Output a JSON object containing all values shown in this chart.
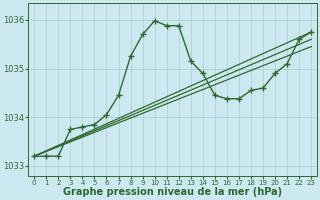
{
  "xlabel": "Graphe pression niveau de la mer (hPa)",
  "background_color": "#cce8f0",
  "grid_color": "#aacccc",
  "line_color": "#2d6a2d",
  "xlim": [
    -0.5,
    23.5
  ],
  "ylim": [
    1032.8,
    1036.35
  ],
  "yticks": [
    1033,
    1034,
    1035,
    1036
  ],
  "xticks": [
    0,
    1,
    2,
    3,
    4,
    5,
    6,
    7,
    8,
    9,
    10,
    11,
    12,
    13,
    14,
    15,
    16,
    17,
    18,
    19,
    20,
    21,
    22,
    23
  ],
  "series": [
    {
      "x": [
        0,
        1,
        2,
        3,
        4,
        5,
        6,
        7,
        8,
        9,
        10,
        11,
        12,
        13,
        14,
        15,
        16,
        17,
        18,
        19,
        20,
        21,
        22,
        23
      ],
      "y": [
        1033.2,
        1033.2,
        1033.2,
        1033.75,
        1033.8,
        1033.85,
        1034.05,
        1034.45,
        1035.25,
        1035.7,
        1035.98,
        1035.88,
        1035.88,
        1035.15,
        1034.9,
        1034.45,
        1034.38,
        1034.38,
        1034.55,
        1034.6,
        1034.9,
        1035.1,
        1035.6,
        1035.75
      ],
      "marker": "+",
      "markersize": 4,
      "linewidth": 1.0,
      "zorder": 5
    },
    {
      "x": [
        0,
        23
      ],
      "y": [
        1033.2,
        1035.75
      ],
      "marker": null,
      "markersize": 0,
      "linewidth": 0.9,
      "zorder": 3
    },
    {
      "x": [
        0,
        23
      ],
      "y": [
        1033.2,
        1035.6
      ],
      "marker": null,
      "markersize": 0,
      "linewidth": 0.9,
      "zorder": 3
    },
    {
      "x": [
        0,
        23
      ],
      "y": [
        1033.2,
        1035.45
      ],
      "marker": null,
      "markersize": 0,
      "linewidth": 0.9,
      "zorder": 3
    }
  ],
  "xlabel_fontsize": 7,
  "xtick_fontsize": 5.0,
  "ytick_fontsize": 6.0,
  "figwidth": 3.2,
  "figheight": 2.0,
  "dpi": 100
}
